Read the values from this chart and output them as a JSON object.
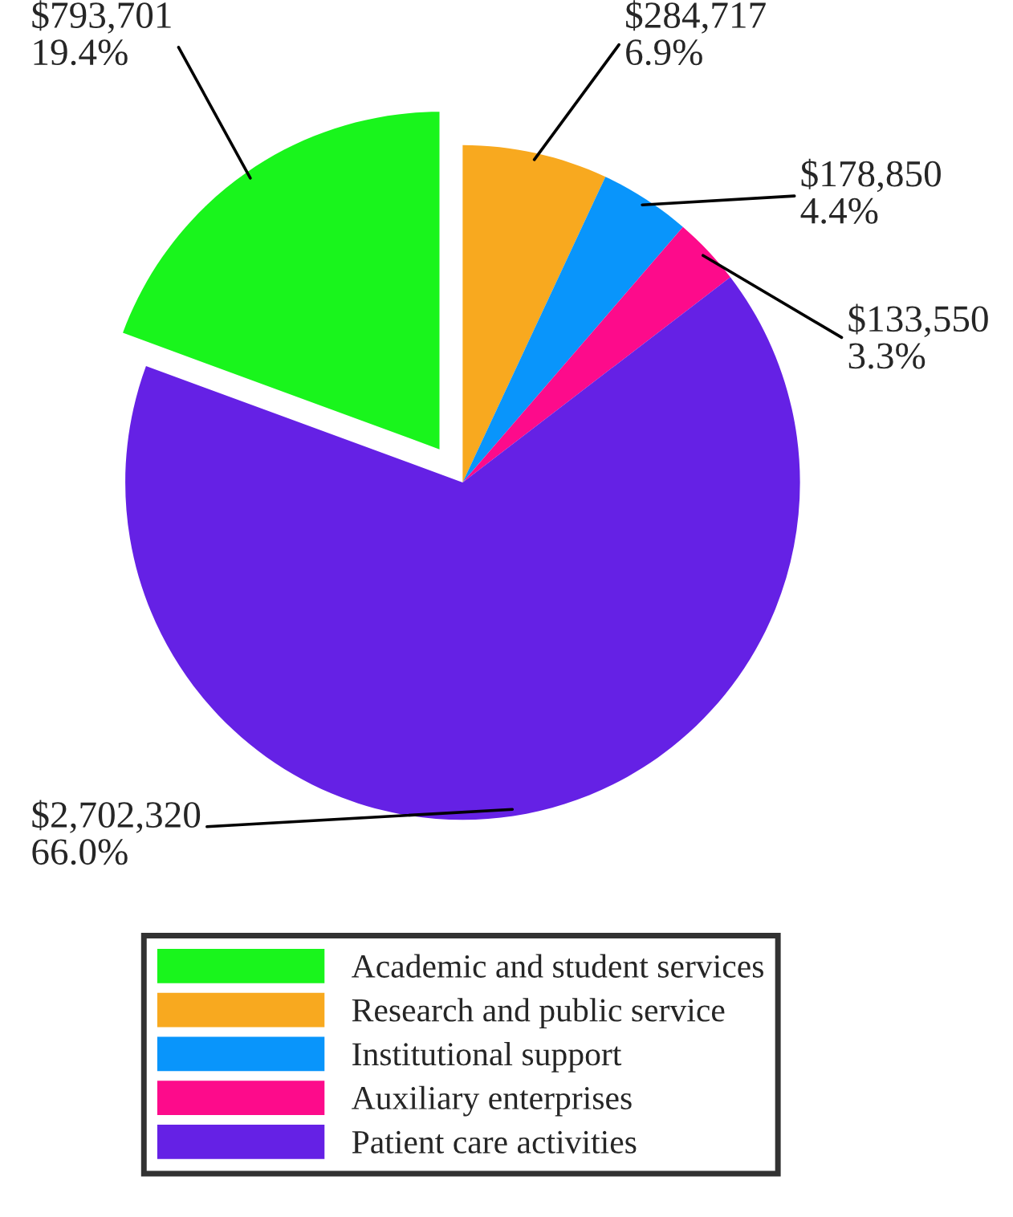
{
  "chart_data": {
    "type": "pie",
    "categories": [
      "Academic and student services",
      "Research and public service",
      "Institutional support",
      "Auxiliary enterprises",
      "Patient care activities"
    ],
    "values": [
      793701,
      284717,
      178850,
      133550,
      2702320
    ],
    "colors": [
      "#19f51c",
      "#f8a91f",
      "#0995fb",
      "#fd0b8b",
      "#6521e5"
    ],
    "value_labels": [
      "$793,701\n19.4%",
      "$284,717\n6.9%",
      "$178,850\n4.4%",
      "$133,550\n3.3%",
      "$2,702,320\n66.0%"
    ],
    "legend": "bottom"
  }
}
